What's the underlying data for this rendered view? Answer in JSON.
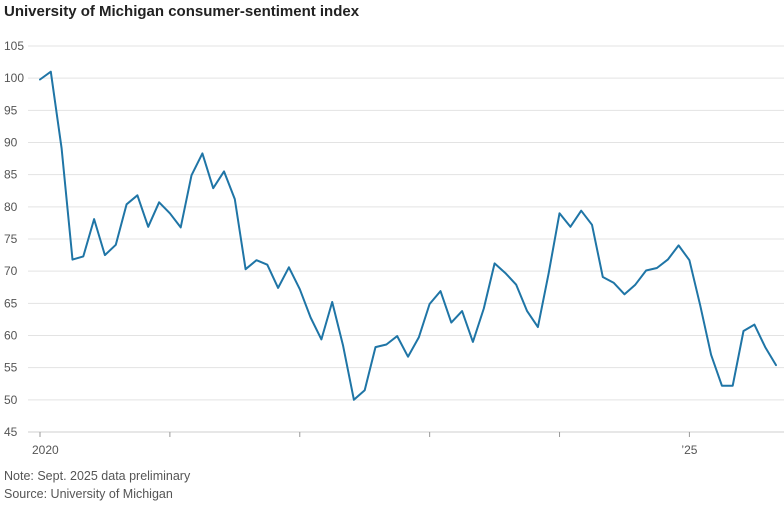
{
  "chart_data": {
    "type": "line",
    "title": "University of Michigan consumer-sentiment index",
    "xlabel": "",
    "ylabel": "",
    "ylim": [
      45,
      105
    ],
    "yticks": [
      105,
      100,
      95,
      90,
      85,
      80,
      75,
      70,
      65,
      60,
      55,
      50,
      45
    ],
    "xlim": [
      0,
      68
    ],
    "xtick_labels": [
      {
        "x": 0,
        "label": "2020"
      },
      {
        "x": 60,
        "label": "’25"
      }
    ],
    "xtick_marks": [
      0,
      12,
      24,
      36,
      48,
      60
    ],
    "series": [
      {
        "name": "Consumer sentiment",
        "color": "#1f75a6",
        "values": [
          99.8,
          101.0,
          89.1,
          71.8,
          72.3,
          78.1,
          72.5,
          74.1,
          80.4,
          81.8,
          76.9,
          80.7,
          79.0,
          76.8,
          84.9,
          88.3,
          82.9,
          85.5,
          81.2,
          70.3,
          71.7,
          71.0,
          67.4,
          70.6,
          67.2,
          62.8,
          59.4,
          65.2,
          58.4,
          50.0,
          51.5,
          58.2,
          58.6,
          59.9,
          56.7,
          59.7,
          64.9,
          66.9,
          62.0,
          63.8,
          59.0,
          64.2,
          71.2,
          69.7,
          67.9,
          63.8,
          61.3,
          69.7,
          79.0,
          76.9,
          79.4,
          77.2,
          69.1,
          68.2,
          66.4,
          67.9,
          70.1,
          70.5,
          71.8,
          74.0,
          71.7,
          64.7,
          57.0,
          52.2,
          52.2,
          60.7,
          61.7,
          58.2,
          55.4
        ]
      }
    ]
  },
  "notes": {
    "note": "Note: Sept. 2025 data preliminary",
    "source": "Source: University of Michigan"
  }
}
